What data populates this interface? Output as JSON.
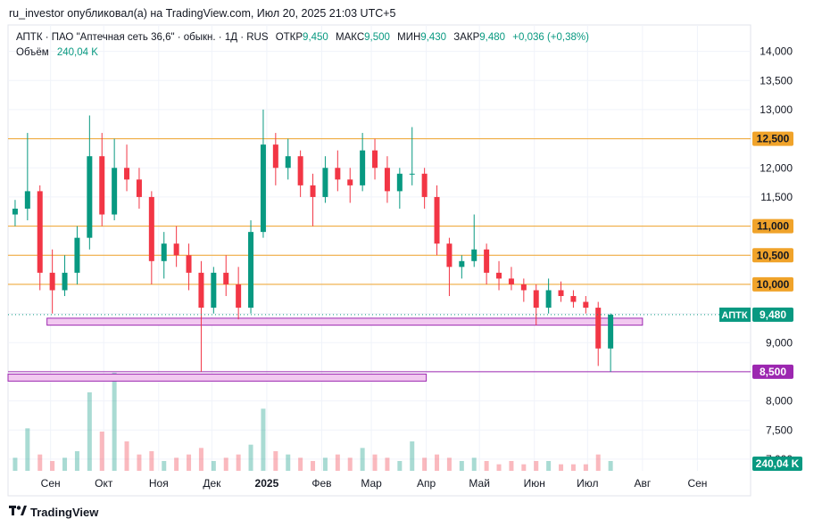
{
  "header": {
    "text": "ru_investor опубликовал(а) на TradingView.com, Июл 20, 2025 21:03 UTC+5"
  },
  "legend": {
    "symbol": "АПТК · ПАО \"Аптечная сеть 36,6\" · обыкн. · 1Д · RUS",
    "open_label": "ОТКР",
    "open": "9,450",
    "high_label": "МАКС",
    "high": "9,500",
    "low_label": "МИН",
    "low": "9,430",
    "close_label": "ЗАКР",
    "close": "9,480",
    "change": "+0,036 (+0,38%)",
    "volume_label": "Объём",
    "volume": "240,04 K"
  },
  "footer": {
    "brand": "TradingView",
    "logo": "tv-logo"
  },
  "colors": {
    "up": "#089981",
    "down": "#f23645",
    "hline": "#f0a32a",
    "zone_fill": "#f2c9f0",
    "zone_border": "#9c27b0",
    "grid": "#f0f3fa",
    "axis_text": "#131722"
  },
  "chart_data": {
    "type": "candlestick",
    "y_axis": {
      "range": [
        6.8,
        14.3
      ],
      "ticks": [
        "14,000",
        "13,500",
        "13,000",
        "12,500",
        "12,000",
        "11,500",
        "11,000",
        "10,500",
        "10,000",
        "9,500",
        "9,000",
        "8,500",
        "8,000",
        "7,500",
        "7,000"
      ],
      "tick_values": [
        14.0,
        13.5,
        13.0,
        12.5,
        12.0,
        11.5,
        11.0,
        10.5,
        10.0,
        9.5,
        9.0,
        8.5,
        8.0,
        7.5,
        7.0
      ]
    },
    "x_axis": {
      "labels": [
        "Сен",
        "Окт",
        "Ноя",
        "Дек",
        "2025",
        "Фев",
        "Мар",
        "Апр",
        "Май",
        "Июн",
        "Июл",
        "Авг",
        "Сен"
      ],
      "bold": [
        "2025"
      ],
      "start": "2024-08-08",
      "end": "2025-10-01"
    },
    "horizontal_lines": [
      {
        "price": 12.5,
        "label": "12,500"
      },
      {
        "price": 11.0,
        "label": "11,000"
      },
      {
        "price": 10.5,
        "label": "10,500"
      },
      {
        "price": 10.0,
        "label": "10,000"
      },
      {
        "price": 8.5,
        "label": "8,500"
      }
    ],
    "zones": [
      {
        "from": "2024-08-30",
        "to": "2025-08-01",
        "top": 9.42,
        "bottom": 9.3
      },
      {
        "from": "2024-08-08",
        "to": "2025-04-01",
        "top": 8.46,
        "bottom": 8.34
      }
    ],
    "current_price": {
      "symbol": "АПТК",
      "label": "9,480",
      "value": 9.48
    },
    "volume_label": "240,04 K",
    "ohlc": [
      [
        "2024-08-12",
        11.2,
        11.45,
        11.0,
        11.3
      ],
      [
        "2024-08-19",
        11.3,
        12.6,
        11.1,
        11.6
      ],
      [
        "2024-08-26",
        11.6,
        11.7,
        9.9,
        10.2
      ],
      [
        "2024-09-02",
        10.2,
        10.6,
        9.5,
        9.9
      ],
      [
        "2024-09-09",
        9.9,
        10.5,
        9.8,
        10.2
      ],
      [
        "2024-09-16",
        10.2,
        11.0,
        10.0,
        10.8
      ],
      [
        "2024-09-23",
        10.8,
        12.9,
        10.6,
        12.2
      ],
      [
        "2024-09-30",
        12.2,
        12.6,
        11.0,
        11.2
      ],
      [
        "2024-10-07",
        11.2,
        12.5,
        11.1,
        12.0
      ],
      [
        "2024-10-14",
        12.0,
        12.4,
        11.6,
        11.8
      ],
      [
        "2024-10-21",
        11.8,
        12.0,
        11.3,
        11.5
      ],
      [
        "2024-10-28",
        11.5,
        11.6,
        10.0,
        10.4
      ],
      [
        "2024-11-04",
        10.4,
        10.9,
        10.1,
        10.7
      ],
      [
        "2024-11-11",
        10.7,
        11.0,
        10.3,
        10.5
      ],
      [
        "2024-11-18",
        10.5,
        10.7,
        9.9,
        10.2
      ],
      [
        "2024-11-25",
        10.2,
        10.4,
        8.5,
        9.6
      ],
      [
        "2024-12-02",
        9.6,
        10.3,
        9.5,
        10.2
      ],
      [
        "2024-12-09",
        10.2,
        10.5,
        9.8,
        10.0
      ],
      [
        "2024-12-16",
        10.0,
        10.3,
        9.4,
        9.6
      ],
      [
        "2024-12-23",
        9.6,
        11.1,
        9.5,
        10.9
      ],
      [
        "2024-12-30",
        10.9,
        13.0,
        10.8,
        12.4
      ],
      [
        "2025-01-06",
        12.4,
        12.6,
        11.7,
        12.0
      ],
      [
        "2025-01-13",
        12.0,
        12.5,
        11.8,
        12.2
      ],
      [
        "2025-01-20",
        12.2,
        12.3,
        11.5,
        11.7
      ],
      [
        "2025-01-27",
        11.7,
        11.9,
        11.0,
        11.5
      ],
      [
        "2025-02-03",
        11.5,
        12.2,
        11.4,
        12.0
      ],
      [
        "2025-02-10",
        12.0,
        12.3,
        11.6,
        11.8
      ],
      [
        "2025-02-17",
        11.8,
        12.0,
        11.4,
        11.7
      ],
      [
        "2025-02-24",
        11.7,
        12.6,
        11.6,
        12.3
      ],
      [
        "2025-03-03",
        12.3,
        12.5,
        11.8,
        12.0
      ],
      [
        "2025-03-10",
        12.0,
        12.2,
        11.4,
        11.6
      ],
      [
        "2025-03-17",
        11.6,
        12.0,
        11.3,
        11.9
      ],
      [
        "2025-03-24",
        11.9,
        12.7,
        11.7,
        11.9
      ],
      [
        "2025-03-31",
        11.9,
        12.0,
        11.3,
        11.5
      ],
      [
        "2025-04-07",
        11.5,
        11.7,
        10.5,
        10.7
      ],
      [
        "2025-04-14",
        10.7,
        10.8,
        9.8,
        10.3
      ],
      [
        "2025-04-21",
        10.3,
        10.5,
        10.1,
        10.4
      ],
      [
        "2025-04-28",
        10.4,
        11.2,
        10.3,
        10.6
      ],
      [
        "2025-05-05",
        10.6,
        10.7,
        10.0,
        10.2
      ],
      [
        "2025-05-12",
        10.2,
        10.4,
        9.9,
        10.1
      ],
      [
        "2025-05-19",
        10.1,
        10.3,
        9.9,
        10.0
      ],
      [
        "2025-05-26",
        10.0,
        10.1,
        9.7,
        9.9
      ],
      [
        "2025-06-02",
        9.9,
        10.0,
        9.3,
        9.6
      ],
      [
        "2025-06-09",
        9.6,
        10.1,
        9.5,
        9.9
      ],
      [
        "2025-06-16",
        9.9,
        10.05,
        9.7,
        9.8
      ],
      [
        "2025-06-23",
        9.8,
        9.9,
        9.6,
        9.7
      ],
      [
        "2025-06-30",
        9.7,
        9.8,
        9.5,
        9.6
      ],
      [
        "2025-07-07",
        9.6,
        9.7,
        8.6,
        8.9
      ],
      [
        "2025-07-14",
        8.9,
        9.5,
        8.5,
        9.48
      ]
    ],
    "volume": [
      [
        "2024-08-12",
        0.4
      ],
      [
        "2024-08-19",
        1.3
      ],
      [
        "2024-08-26",
        0.5
      ],
      [
        "2024-09-02",
        0.3
      ],
      [
        "2024-09-09",
        0.4
      ],
      [
        "2024-09-16",
        0.6
      ],
      [
        "2024-09-23",
        2.4
      ],
      [
        "2024-09-30",
        1.2
      ],
      [
        "2024-10-07",
        3.0
      ],
      [
        "2024-10-14",
        0.9
      ],
      [
        "2024-10-21",
        0.5
      ],
      [
        "2024-10-28",
        0.6
      ],
      [
        "2024-11-04",
        0.3
      ],
      [
        "2024-11-11",
        0.4
      ],
      [
        "2024-11-18",
        0.5
      ],
      [
        "2024-11-25",
        0.7
      ],
      [
        "2024-12-02",
        0.3
      ],
      [
        "2024-12-09",
        0.4
      ],
      [
        "2024-12-16",
        0.5
      ],
      [
        "2024-12-23",
        0.8
      ],
      [
        "2024-12-30",
        1.9
      ],
      [
        "2025-01-06",
        0.6
      ],
      [
        "2025-01-13",
        0.5
      ],
      [
        "2025-01-20",
        0.4
      ],
      [
        "2025-01-27",
        0.3
      ],
      [
        "2025-02-03",
        0.4
      ],
      [
        "2025-02-10",
        0.5
      ],
      [
        "2025-02-17",
        0.4
      ],
      [
        "2025-02-24",
        0.7
      ],
      [
        "2025-03-03",
        0.5
      ],
      [
        "2025-03-10",
        0.4
      ],
      [
        "2025-03-17",
        0.3
      ],
      [
        "2025-03-24",
        0.9
      ],
      [
        "2025-03-31",
        0.4
      ],
      [
        "2025-04-07",
        0.5
      ],
      [
        "2025-04-14",
        0.4
      ],
      [
        "2025-04-21",
        0.3
      ],
      [
        "2025-04-28",
        0.4
      ],
      [
        "2025-05-05",
        0.3
      ],
      [
        "2025-05-12",
        0.2
      ],
      [
        "2025-05-19",
        0.3
      ],
      [
        "2025-05-26",
        0.2
      ],
      [
        "2025-06-02",
        0.3
      ],
      [
        "2025-06-09",
        0.3
      ],
      [
        "2025-06-16",
        0.2
      ],
      [
        "2025-06-23",
        0.2
      ],
      [
        "2025-06-30",
        0.2
      ],
      [
        "2025-07-07",
        0.5
      ],
      [
        "2025-07-14",
        0.3
      ]
    ]
  }
}
